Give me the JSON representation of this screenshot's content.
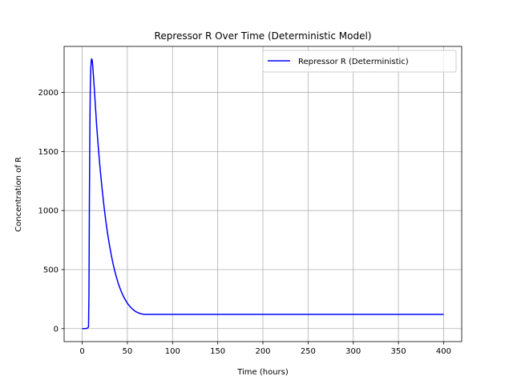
{
  "chart_data": {
    "type": "line",
    "title": "Repressor R Over Time (Deterministic Model)",
    "xlabel": "Time (hours)",
    "ylabel": "Concentration of R",
    "xlim": [
      -20,
      420
    ],
    "ylim": [
      -110,
      2390
    ],
    "xticks": [
      0,
      50,
      100,
      150,
      200,
      250,
      300,
      350,
      400
    ],
    "yticks": [
      0,
      500,
      1000,
      1500,
      2000
    ],
    "grid": true,
    "legend_position": "top-right",
    "colors": {
      "series": "#0000ff",
      "grid": "#b0b0b0"
    },
    "series": [
      {
        "name": "Repressor R (Deterministic)",
        "x": [
          0,
          2,
          4,
          6,
          7,
          7.5,
          8,
          8.5,
          9,
          9.5,
          10,
          10.5,
          11,
          11.5,
          12,
          13,
          14,
          15,
          16,
          18,
          20,
          22,
          24,
          26,
          28,
          30,
          32,
          34,
          36,
          38,
          40,
          42,
          44,
          46,
          48,
          50,
          52,
          54,
          56,
          58,
          60,
          62,
          64,
          66,
          68,
          70,
          72,
          74,
          76,
          78,
          80,
          82,
          84,
          90,
          100,
          150,
          200,
          250,
          300,
          350,
          400
        ],
        "y": [
          0,
          0,
          0,
          5,
          15,
          300,
          1100,
          1700,
          2050,
          2200,
          2270,
          2285,
          2275,
          2240,
          2190,
          2080,
          1960,
          1840,
          1720,
          1520,
          1340,
          1185,
          1045,
          920,
          810,
          715,
          630,
          555,
          490,
          432,
          380,
          338,
          300,
          268,
          240,
          215,
          195,
          178,
          163,
          151,
          141,
          134,
          128,
          124,
          121,
          120,
          120,
          120,
          120,
          120,
          120,
          120,
          120,
          120,
          120,
          120,
          120,
          120,
          120,
          120,
          120
        ]
      }
    ]
  }
}
